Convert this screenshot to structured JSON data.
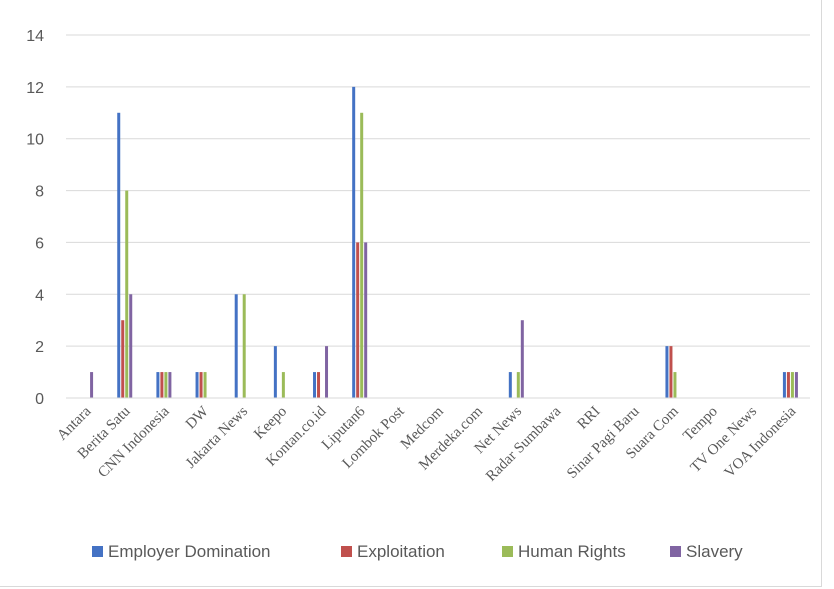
{
  "chart_data": {
    "type": "bar",
    "title": "",
    "xlabel": "",
    "ylabel": "",
    "ylim": [
      0,
      14
    ],
    "yticks": [
      0,
      2,
      4,
      6,
      8,
      10,
      12,
      14
    ],
    "grid": true,
    "legend_position": "bottom",
    "categories": [
      "Antara",
      "Berita Satu",
      "CNN Indonesia",
      "DW",
      "Jakarta News",
      "Keepo",
      "Kontan.co.id",
      "Liputan6",
      "Lombok Post",
      "Medcom",
      "Merdeka.com",
      "Net News",
      "Radar Sumbawa",
      "RRI",
      "Sinar Pagi Baru",
      "Suara Com",
      "Tempo",
      "TV One News",
      "VOA Indonesia"
    ],
    "series": [
      {
        "name": "Employer Domination",
        "color": "#4472c4",
        "values": [
          0,
          11,
          1,
          1,
          4,
          2,
          1,
          12,
          0,
          0,
          0,
          1,
          0,
          0,
          0,
          2,
          0,
          0,
          1
        ]
      },
      {
        "name": "Exploitation",
        "color": "#c0504d",
        "values": [
          0,
          3,
          1,
          1,
          0,
          0,
          1,
          6,
          0,
          0,
          0,
          0,
          0,
          0,
          0,
          2,
          0,
          0,
          1
        ]
      },
      {
        "name": "Human Rights",
        "color": "#9bbb59",
        "values": [
          0,
          8,
          1,
          1,
          4,
          1,
          0,
          11,
          0,
          0,
          0,
          1,
          0,
          0,
          0,
          1,
          0,
          0,
          1
        ]
      },
      {
        "name": "Slavery",
        "color": "#8064a2",
        "values": [
          1,
          4,
          1,
          0,
          0,
          0,
          2,
          6,
          0,
          0,
          0,
          3,
          0,
          0,
          0,
          0,
          0,
          0,
          1
        ]
      }
    ]
  }
}
